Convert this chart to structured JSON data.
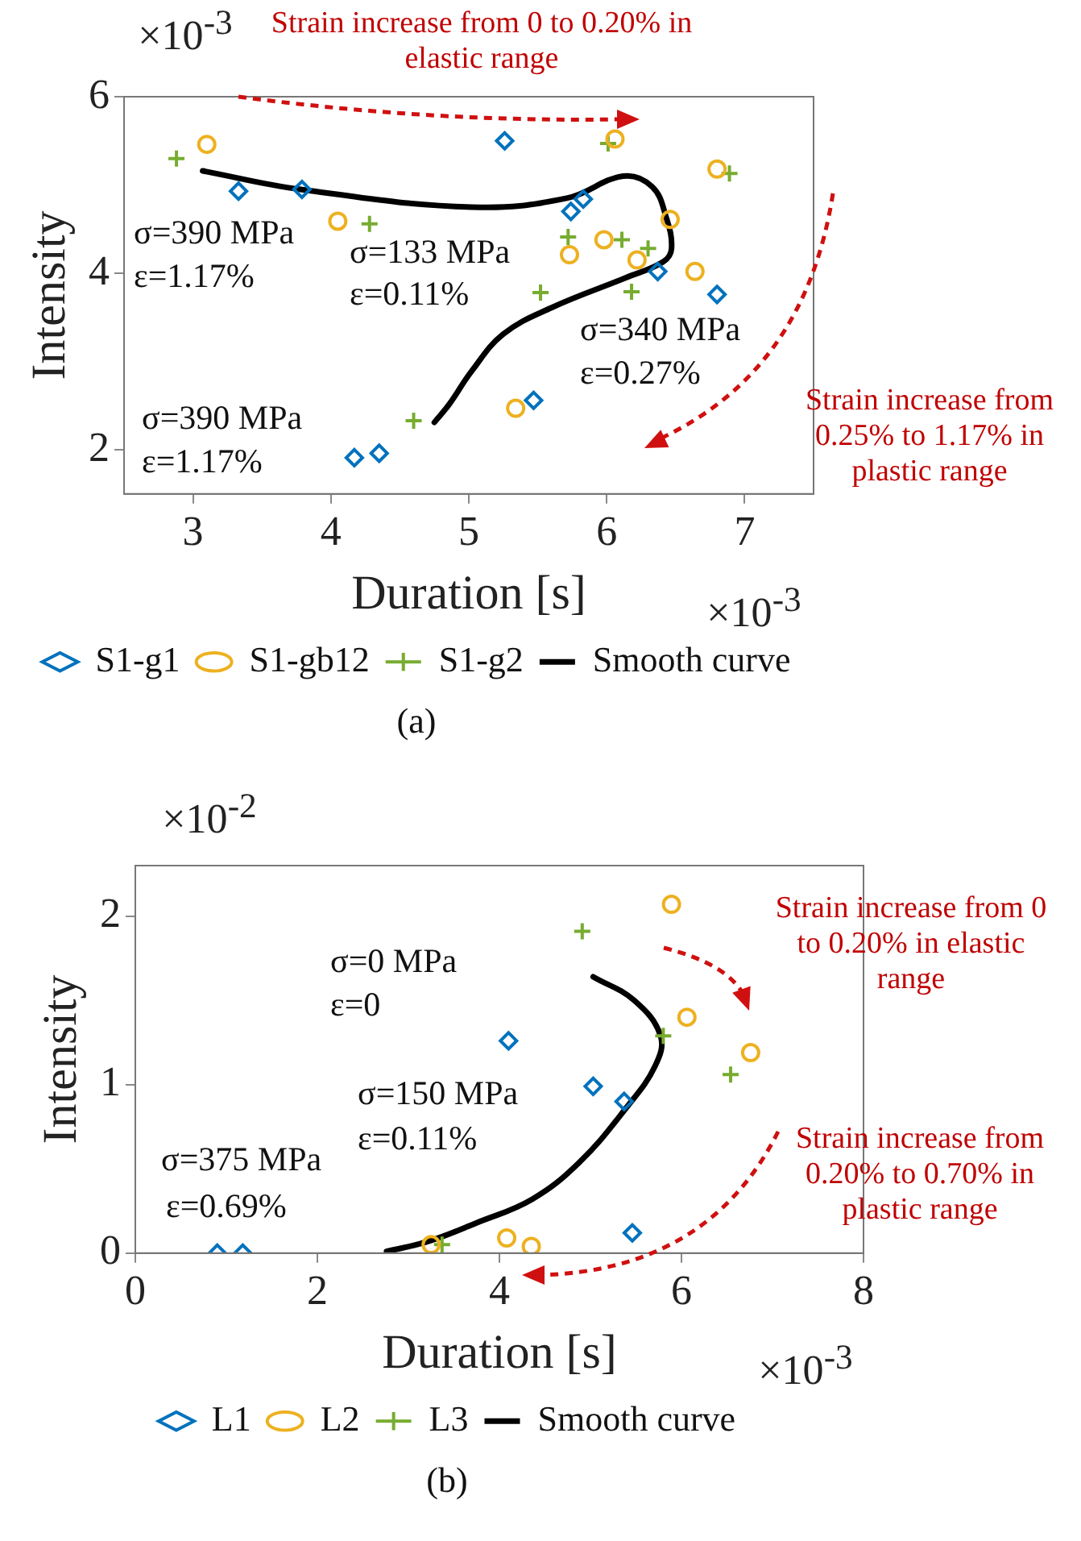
{
  "chart_data": [
    {
      "type": "scatter",
      "title": "(a)",
      "xlabel": "Duration [s]",
      "ylabel": "Intensity",
      "xlim": [
        2.5,
        7.5
      ],
      "xticks": [
        3,
        4,
        5,
        6,
        7
      ],
      "ylim": [
        1.5,
        6
      ],
      "yticks": [
        2,
        4,
        6
      ],
      "grid": false,
      "legend": "bottom",
      "series": [
        {
          "name": "S1-g1",
          "color": "#0072bd",
          "marker": "diamond",
          "x": [
            5.26,
            3.33,
            3.79,
            5.74,
            5.83,
            6.37,
            6.8,
            5.47,
            4.17,
            4.35
          ],
          "values": [
            5.5,
            4.93,
            4.95,
            4.7,
            4.84,
            4.02,
            3.76,
            2.56,
            1.91,
            1.96
          ]
        },
        {
          "name": "S1-gb12",
          "color": "#edb120",
          "marker": "circle",
          "x": [
            3.1,
            6.06,
            6.8,
            4.05,
            6.46,
            5.73,
            5.98,
            6.22,
            6.64,
            5.34
          ],
          "values": [
            5.46,
            5.52,
            5.18,
            4.59,
            4.61,
            4.21,
            4.38,
            4.15,
            4.02,
            2.47
          ]
        },
        {
          "name": "S1-g2",
          "color": "#77ac30",
          "marker": "cross",
          "x": [
            2.88,
            6.01,
            6.89,
            4.28,
            5.72,
            6.11,
            6.3,
            5.52,
            6.18,
            4.6
          ],
          "values": [
            5.3,
            5.47,
            5.13,
            4.56,
            4.41,
            4.38,
            4.28,
            3.78,
            3.79,
            2.33
          ]
        },
        {
          "name": "Smooth curve",
          "type": "line",
          "color": "#000000",
          "marker": "none",
          "x": [
            3.07,
            3.78,
            5.02,
            5.71,
            6.12,
            6.33,
            6.43,
            6.47,
            6.41,
            6.14,
            5.6,
            5.25,
            5.02,
            4.86,
            4.75
          ],
          "values": [
            5.16,
            4.95,
            4.75,
            4.85,
            5.1,
            4.98,
            4.64,
            4.28,
            4.13,
            3.95,
            3.61,
            3.31,
            2.89,
            2.52,
            2.31
          ]
        }
      ],
      "annotations": [
        "σ=390 MPa",
        "ε=1.17%",
        "σ=133 MPa",
        "ε=0.11%",
        "σ=340 MPa",
        "ε=0.27%",
        "σ=390 MPa",
        "ε=1.17%",
        "Strain increase from 0 to 0.20% in elastic range",
        "Strain increase from 0.25% to 1.17% in plastic range",
        "×10$^{-3}$",
        "×10$^{-3}$"
      ]
    },
    {
      "type": "scatter",
      "title": "(b)",
      "xlabel": "Duration [s]",
      "ylabel": "Intensity",
      "xlim": [
        0,
        8
      ],
      "xticks": [
        0,
        2,
        4,
        6,
        8
      ],
      "ylim": [
        0,
        2.3
      ],
      "yticks": [
        0,
        1,
        2
      ],
      "grid": false,
      "legend": "bottom",
      "series": [
        {
          "name": "L1",
          "color": "#0072bd",
          "marker": "diamond",
          "x": [
            4.1,
            5.03,
            5.37,
            0.9,
            1.18,
            5.46
          ],
          "values": [
            1.26,
            0.99,
            0.9,
            0,
            0,
            0.12
          ]
        },
        {
          "name": "L2",
          "color": "#edb120",
          "marker": "circle",
          "x": [
            5.89,
            6.06,
            6.76,
            3.25,
            4.08,
            4.35
          ],
          "values": [
            2.07,
            1.4,
            1.19,
            0.05,
            0.09,
            0.04
          ]
        },
        {
          "name": "L3",
          "color": "#77ac30",
          "marker": "cross",
          "x": [
            4.91,
            5.8,
            6.54,
            3.37
          ],
          "values": [
            1.91,
            1.29,
            1.06,
            0.05
          ]
        },
        {
          "name": "Smooth curve",
          "type": "line",
          "color": "#000000",
          "marker": "none",
          "x": [
            5.03,
            5.48,
            5.77,
            5.71,
            5.39,
            4.88,
            4.36,
            3.75,
            3.22,
            2.76
          ],
          "values": [
            1.64,
            1.5,
            1.29,
            1.11,
            0.86,
            0.54,
            0.32,
            0.18,
            0.07,
            0.01
          ]
        }
      ],
      "annotations": [
        "σ=0 MPa",
        "ε=0",
        "σ=150 MPa",
        "ε=0.11%",
        "σ=375 MPa",
        "ε=0.69%",
        "Strain increase from 0 to 0.20% in elastic range",
        "Strain increase from 0.20% to 0.70% in plastic range",
        "×10$^{-2}$",
        "×10$^{-3}$"
      ]
    }
  ]
}
